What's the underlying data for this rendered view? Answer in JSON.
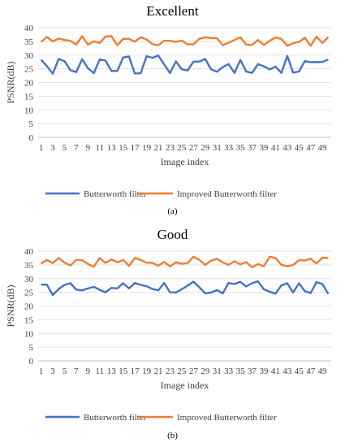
{
  "chart_data": [
    {
      "type": "line",
      "title": "Excellent",
      "xlabel": "Image index",
      "ylabel": "PSNR(dB)",
      "ylim": [
        0,
        40
      ],
      "yticks": [
        0,
        5,
        10,
        15,
        20,
        25,
        30,
        35,
        40
      ],
      "x": [
        1,
        2,
        3,
        4,
        5,
        6,
        7,
        8,
        9,
        10,
        11,
        12,
        13,
        14,
        15,
        16,
        17,
        18,
        19,
        20,
        21,
        22,
        23,
        24,
        25,
        26,
        27,
        28,
        29,
        30,
        31,
        32,
        33,
        34,
        35,
        36,
        37,
        38,
        39,
        40,
        41,
        42,
        43,
        44,
        45,
        46,
        47,
        48,
        49,
        50
      ],
      "xtick_labels": [
        "1",
        "3",
        "5",
        "7",
        "9",
        "11",
        "13",
        "15",
        "17",
        "19",
        "21",
        "23",
        "25",
        "27",
        "29",
        "31",
        "33",
        "35",
        "37",
        "39",
        "41",
        "43",
        "45",
        "47",
        "49"
      ],
      "grid": true,
      "legend_position": "bottom",
      "series": [
        {
          "name": "Butterworth filter",
          "color": "#4472C4",
          "values": [
            28.3,
            26.0,
            23.2,
            28.6,
            27.8,
            24.5,
            23.8,
            28.5,
            25.2,
            23.4,
            28.4,
            28.0,
            24.2,
            24.2,
            29.1,
            29.5,
            23.3,
            23.4,
            29.6,
            29.0,
            29.8,
            26.6,
            23.4,
            27.7,
            24.8,
            24.4,
            27.6,
            27.6,
            28.6,
            24.8,
            23.9,
            25.6,
            26.7,
            23.5,
            28.2,
            24.0,
            23.5,
            26.7,
            25.9,
            24.8,
            25.8,
            23.5,
            29.7,
            23.6,
            24.0,
            27.8,
            27.4,
            27.4,
            27.5,
            28.4
          ]
        },
        {
          "name": "Improved  Butterworth filter",
          "color": "#ED7D31",
          "values": [
            34.8,
            36.6,
            35.0,
            36.0,
            35.5,
            35.2,
            33.8,
            36.9,
            33.8,
            35.0,
            34.4,
            36.7,
            36.9,
            33.6,
            35.9,
            35.9,
            34.9,
            36.5,
            35.7,
            34.0,
            33.6,
            35.2,
            35.2,
            34.8,
            35.3,
            33.9,
            33.9,
            35.9,
            36.5,
            36.2,
            36.2,
            33.6,
            34.5,
            35.5,
            36.5,
            33.8,
            33.7,
            35.5,
            33.7,
            35.2,
            36.4,
            35.9,
            33.4,
            34.3,
            34.8,
            36.3,
            33.4,
            36.7,
            34.4,
            36.6
          ]
        }
      ]
    },
    {
      "type": "line",
      "title": "Good",
      "xlabel": "Image index",
      "ylabel": "PSNR(dB)",
      "ylim": [
        0,
        40
      ],
      "yticks": [
        0,
        5,
        10,
        15,
        20,
        25,
        30,
        35,
        40
      ],
      "x": [
        1,
        2,
        3,
        4,
        5,
        6,
        7,
        8,
        9,
        10,
        11,
        12,
        13,
        14,
        15,
        16,
        17,
        18,
        19,
        20,
        21,
        22,
        23,
        24,
        25,
        26,
        27,
        28,
        29,
        30,
        31,
        32,
        33,
        34,
        35,
        36,
        37,
        38,
        39,
        40,
        41,
        42,
        43,
        44,
        45,
        46,
        47,
        48,
        49,
        50
      ],
      "xtick_labels": [
        "1",
        "3",
        "5",
        "7",
        "9",
        "11",
        "13",
        "15",
        "17",
        "19",
        "21",
        "23",
        "25",
        "27",
        "29",
        "31",
        "33",
        "35",
        "37",
        "39",
        "41",
        "43",
        "45",
        "47",
        "49"
      ],
      "grid": true,
      "legend_position": "bottom",
      "series": [
        {
          "name": "Butterworth filter",
          "color": "#4472C4",
          "values": [
            27.8,
            27.8,
            24.0,
            26.2,
            27.7,
            28.3,
            26.0,
            25.7,
            26.4,
            27.0,
            25.9,
            25.0,
            26.6,
            26.4,
            28.3,
            26.4,
            28.4,
            27.7,
            27.2,
            26.2,
            25.7,
            28.4,
            25.0,
            24.9,
            26.1,
            27.4,
            28.9,
            26.8,
            24.6,
            24.9,
            25.8,
            24.6,
            28.4,
            28.0,
            28.8,
            27.1,
            28.3,
            29.0,
            26.1,
            25.2,
            24.5,
            27.5,
            28.3,
            24.9,
            28.3,
            25.4,
            24.7,
            28.7,
            28.0,
            24.4
          ]
        },
        {
          "name": "Improved  Butterworth filter",
          "color": "#ED7D31",
          "values": [
            35.5,
            36.8,
            35.6,
            37.5,
            35.8,
            34.8,
            36.8,
            36.7,
            35.3,
            34.3,
            37.5,
            35.7,
            37.0,
            35.9,
            36.8,
            34.6,
            37.5,
            36.8,
            35.8,
            35.7,
            34.7,
            36.1,
            34.4,
            35.9,
            35.4,
            35.6,
            38.0,
            36.8,
            35.0,
            36.5,
            37.2,
            35.9,
            35.0,
            36.3,
            35.2,
            36.0,
            34.1,
            35.3,
            34.5,
            38.0,
            37.5,
            35.0,
            34.5,
            34.9,
            36.7,
            36.6,
            37.2,
            35.5,
            37.6,
            37.5
          ]
        }
      ]
    }
  ],
  "captions": [
    "(a)",
    "(b)"
  ]
}
